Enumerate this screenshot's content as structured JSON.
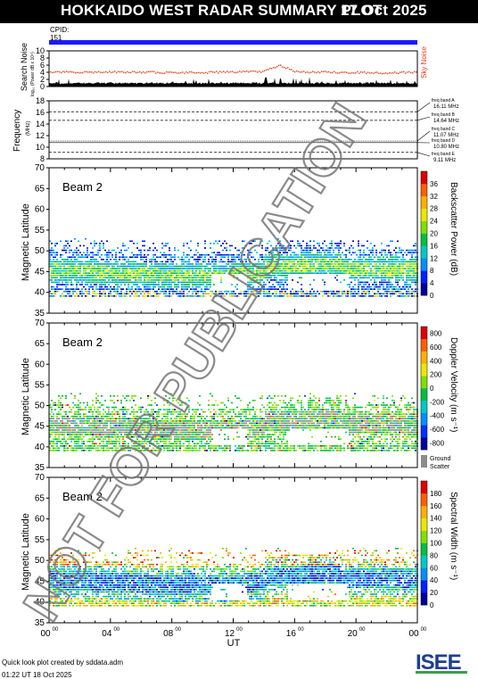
{
  "header": {
    "title": "HOKKAIDO WEST RADAR SUMMARY PLOT",
    "date": "17 Oct 2025",
    "cpid_label": "CPID:",
    "cpid_value": "151"
  },
  "colors": {
    "cpid_bar": "#1a1aff",
    "sky_noise": "#e0401a",
    "ground_scatter": "#8c8c8c"
  },
  "watermark": "NOT FOR PUBLICATION",
  "footer": {
    "credit": "Quick look plot created by sddata.adm",
    "timestamp": "01:22 UT 18 Oct 2025",
    "logo": "ISEE"
  },
  "legend_freq": [
    {
      "band": "freq band A",
      "value": "16.11 MHz"
    },
    {
      "band": "freq band B",
      "value": "14.64 MHz"
    },
    {
      "band": "freq band C",
      "value": "11.07 MHz"
    },
    {
      "band": "freq band D",
      "value": "10.80 MHz"
    },
    {
      "band": "freq band E",
      "value": "9.11 MHz"
    }
  ],
  "chart_data": [
    {
      "type": "line",
      "id": "noise",
      "ylabel": "Search Noise",
      "ylabel_units": "log₁₀ (Power dB x 10⁴)",
      "right_label": "Sky Noise",
      "ylim": [
        0,
        10
      ],
      "yticks": [
        "0",
        "2",
        "4",
        "6",
        "8",
        "10"
      ],
      "series": [
        {
          "name": "Sky Noise",
          "x_hours": [
            0,
            2,
            4,
            6,
            8,
            10,
            12,
            14,
            15,
            16,
            18,
            20,
            22,
            24
          ],
          "values": [
            4.2,
            4.1,
            4.3,
            4.2,
            4.0,
            4.1,
            4.3,
            4.4,
            6.2,
            4.3,
            4.2,
            4.1,
            4.0,
            4.2
          ]
        },
        {
          "name": "Search Noise",
          "x_hours": [
            0,
            4,
            8,
            12,
            16,
            20,
            24
          ],
          "values": [
            0.9,
            1.0,
            1.0,
            0.9,
            1.1,
            1.0,
            0.9
          ]
        }
      ]
    },
    {
      "type": "line",
      "id": "frequency",
      "ylabel": "Frequency",
      "ylabel_units": "(MHz)",
      "ylim": [
        8,
        18
      ],
      "yticks": [
        "8",
        "10",
        "12",
        "14",
        "16",
        "18"
      ],
      "levels": [
        16.11,
        14.64,
        11.07,
        10.8,
        9.11
      ]
    },
    {
      "type": "heatmap",
      "id": "power",
      "beam": "Beam  2",
      "ylabel": "Magnetic Latitude",
      "ylim": [
        35,
        70
      ],
      "yticks": [
        "35",
        "40",
        "45",
        "50",
        "55",
        "60",
        "65",
        "70"
      ],
      "colorbar_label": "Backscatter Power (dB)",
      "colorbar_ticks": [
        "0",
        "4",
        "8",
        "12",
        "16",
        "20",
        "24",
        "28",
        "32",
        "36"
      ],
      "colorbar_colors": [
        "#0000a0",
        "#0020ff",
        "#0090ff",
        "#00c8c8",
        "#00c040",
        "#80e000",
        "#e8e800",
        "#ffb000",
        "#ff6000",
        "#e00000"
      ]
    },
    {
      "type": "heatmap",
      "id": "velocity",
      "beam": "Beam  2",
      "ylabel": "Magnetic Latitude",
      "ylim": [
        35,
        70
      ],
      "yticks": [
        "35",
        "40",
        "45",
        "50",
        "55",
        "60",
        "65",
        "70"
      ],
      "colorbar_label": "Doppler Velocity (m s⁻¹)",
      "colorbar_ticks": [
        "800",
        "600",
        "400",
        "200",
        "0",
        "-200",
        "-400",
        "-600",
        "-800"
      ],
      "colorbar_colors": [
        "#0000a0",
        "#0030ff",
        "#0090ff",
        "#00c8c8",
        "#00c040",
        "#80e000",
        "#e8e800",
        "#ffb000",
        "#ff6000",
        "#e00000"
      ],
      "ground_scatter_label": "Ground Scatter"
    },
    {
      "type": "heatmap",
      "id": "width",
      "beam": "Beam  2",
      "ylabel": "Magnetic Latitude",
      "ylim": [
        35,
        70
      ],
      "yticks": [
        "35",
        "40",
        "45",
        "50",
        "55",
        "60",
        "65",
        "70"
      ],
      "colorbar_label": "Spectral Width (m s⁻¹)",
      "colorbar_ticks": [
        "0",
        "20",
        "40",
        "60",
        "80",
        "100",
        "120",
        "140",
        "160",
        "180"
      ],
      "colorbar_colors": [
        "#0000a0",
        "#0020ff",
        "#0090ff",
        "#00c8c8",
        "#00c040",
        "#80e000",
        "#e8e800",
        "#ffb000",
        "#ff6000",
        "#e00000"
      ]
    }
  ],
  "xaxis": {
    "label": "UT",
    "ticks": [
      {
        "h": "00",
        "m": "00"
      },
      {
        "h": "04",
        "m": "00"
      },
      {
        "h": "08",
        "m": "00"
      },
      {
        "h": "12",
        "m": "00"
      },
      {
        "h": "16",
        "m": "00"
      },
      {
        "h": "20",
        "m": "00"
      },
      {
        "h": "00",
        "m": "00"
      }
    ]
  }
}
